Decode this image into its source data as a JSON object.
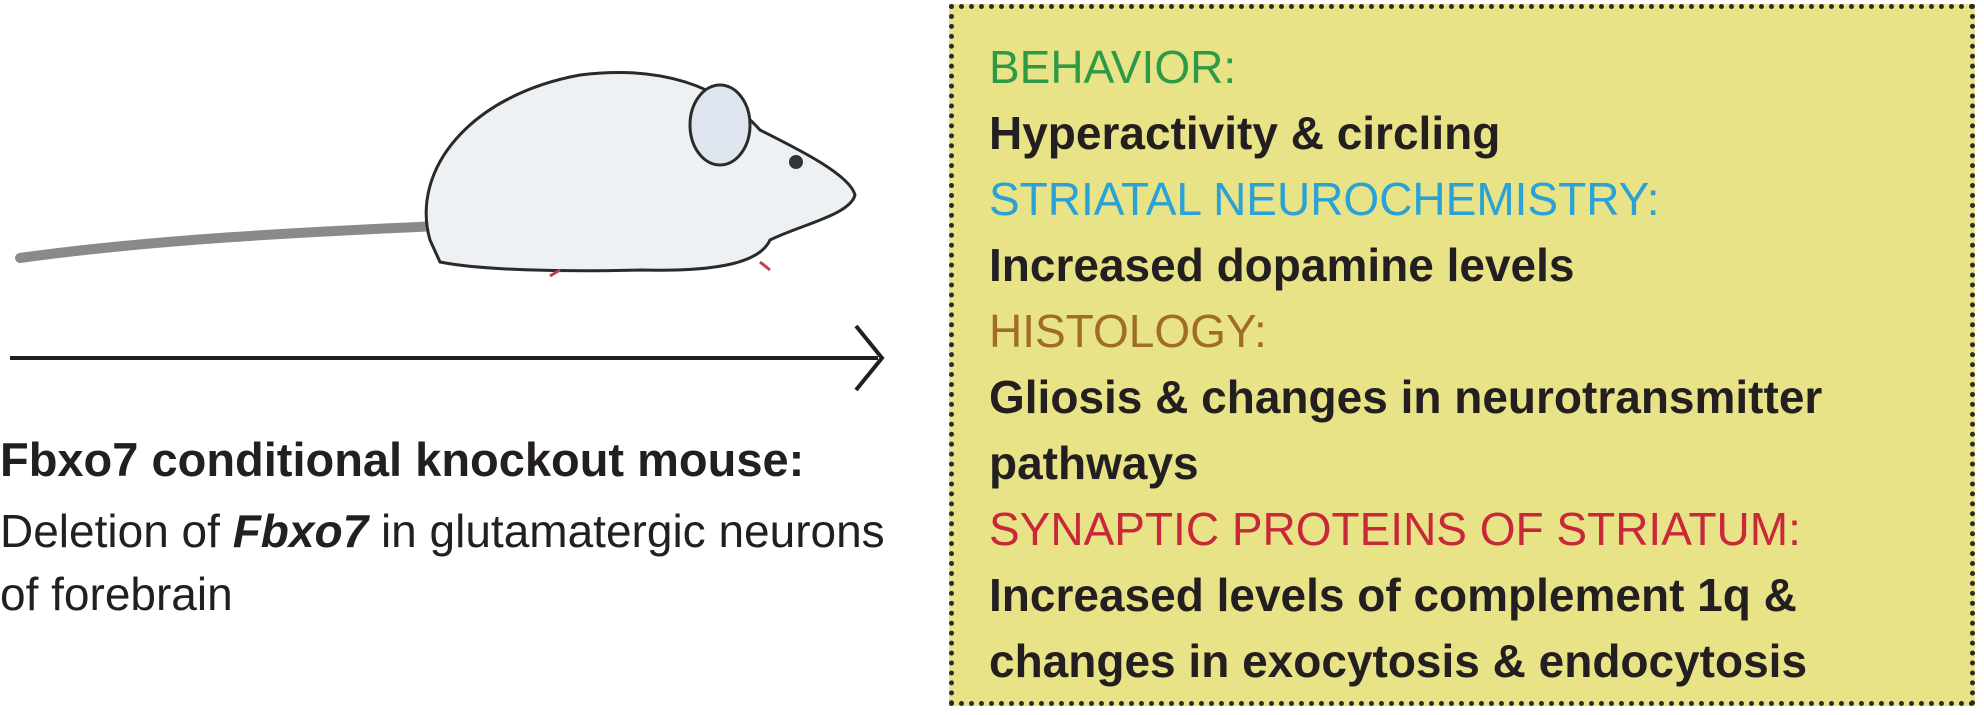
{
  "caption": {
    "title": "Fbxo7 conditional knockout mouse:",
    "description": [
      "Deletion of ",
      "Fbxo7",
      " in glutamatergic neurons of forebrain"
    ]
  },
  "findings": [
    {
      "heading": "BEHAVIOR:",
      "text": "Hyperactivity & circling"
    },
    {
      "heading": "STRIATAL NEUROCHEMISTRY:",
      "text": "Increased dopamine levels"
    },
    {
      "heading": "HISTOLOGY:",
      "text": "Gliosis & changes in neurotransmitter pathways"
    },
    {
      "heading": "SYNAPTIC PROTEINS OF STRIATUM:",
      "text": "Increased levels of complement 1q & changes in exocytosis & endocytosis"
    }
  ]
}
